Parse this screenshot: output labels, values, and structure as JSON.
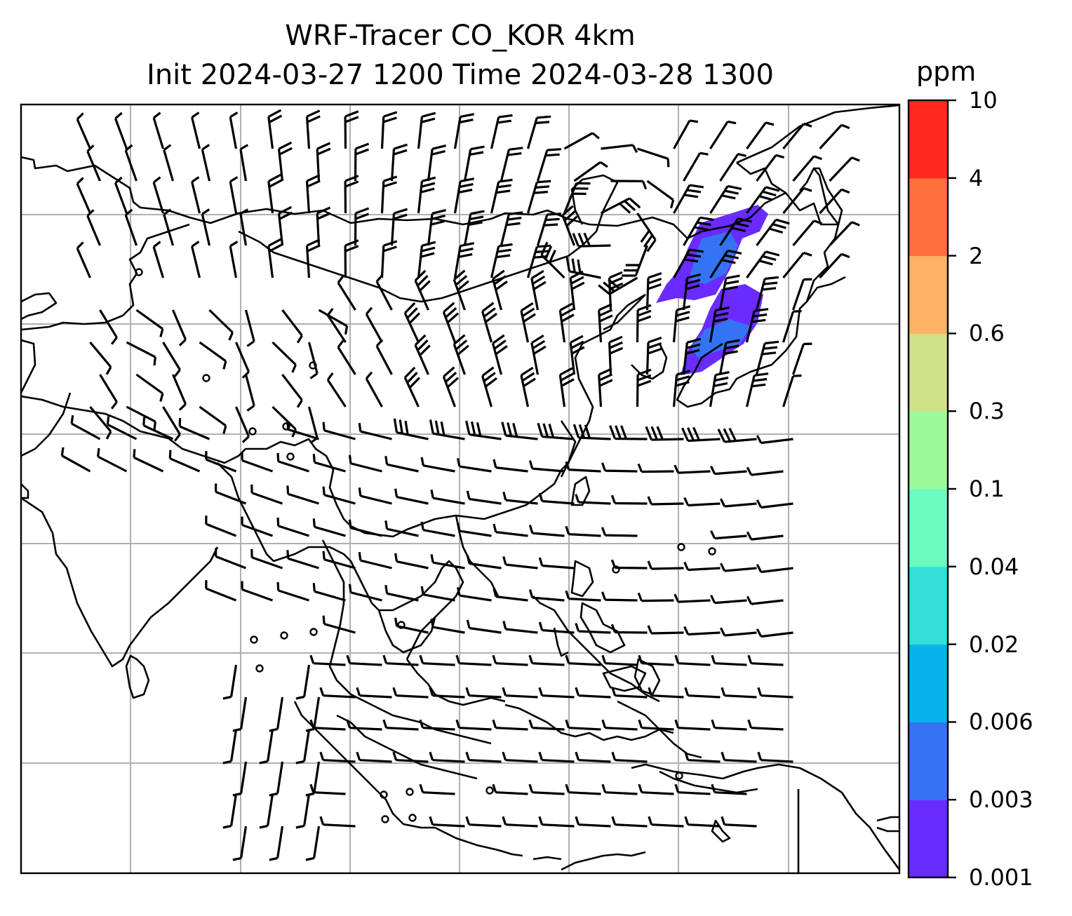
{
  "title": "WRF-Tracer CO_KOR 4km",
  "subtitle": "Init 2024-03-27 1200 Time 2024-03-28 1300",
  "colorbar": {
    "unit": "ppm",
    "ticks": [
      "0.001",
      "0.003",
      "0.006",
      "0.02",
      "0.04",
      "0.1",
      "0.3",
      "0.6",
      "2",
      "4",
      "10"
    ],
    "colors": [
      "#6a2bff",
      "#3474f4",
      "#08b2ec",
      "#33dfd8",
      "#6bfbc1",
      "#9bfa9c",
      "#d0e187",
      "#ffb165",
      "#ff703e",
      "#ff2a1b"
    ]
  },
  "map": {
    "projection": "lat-lon",
    "gridlines": true,
    "coastlines": true,
    "field": "CO_KOR tracer concentration",
    "wind": "barbs"
  }
}
